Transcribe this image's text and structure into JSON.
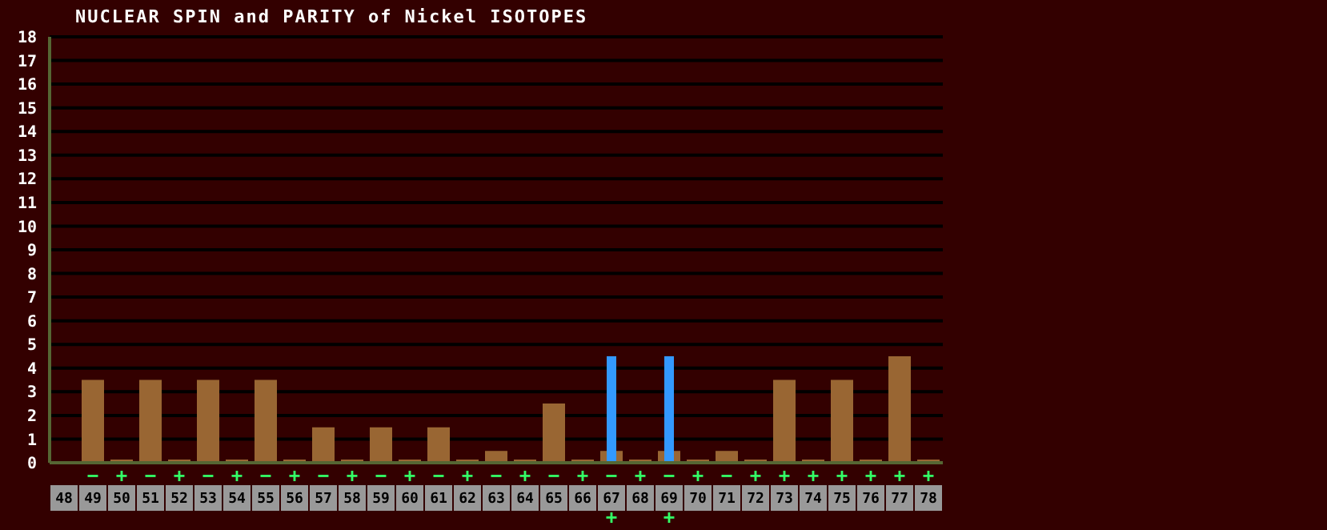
{
  "chart_data": {
    "type": "bar",
    "title": "NUCLEAR SPIN and PARITY of Nickel ISOTOPES",
    "categories": [
      "48",
      "49",
      "50",
      "51",
      "52",
      "53",
      "54",
      "55",
      "56",
      "57",
      "58",
      "59",
      "60",
      "61",
      "62",
      "63",
      "64",
      "65",
      "66",
      "67",
      "68",
      "69",
      "70",
      "71",
      "72",
      "73",
      "74",
      "75",
      "76",
      "77",
      "78"
    ],
    "series": [
      {
        "color": "#996633",
        "values": [
          null,
          3.5,
          0,
          3.5,
          0,
          3.5,
          0,
          3.5,
          0,
          1.5,
          0,
          1.5,
          0,
          1.5,
          0,
          0.5,
          0,
          2.5,
          0,
          0.5,
          0,
          0.5,
          0,
          0.5,
          0,
          3.5,
          0,
          3.5,
          0,
          4.5,
          0
        ],
        "value_labels": [
          null,
          "−",
          "+",
          "−",
          "+",
          "−",
          "+",
          "−",
          "+",
          "−",
          "+",
          "−",
          "+",
          "−",
          "+",
          "−",
          "+",
          "−",
          "+",
          "−",
          "+",
          "−",
          "+",
          "−",
          "+",
          "+",
          "+",
          "+",
          "+",
          "+",
          "+"
        ]
      },
      {
        "color": "#3399ff",
        "values": [
          null,
          null,
          null,
          null,
          null,
          null,
          null,
          null,
          null,
          null,
          null,
          null,
          null,
          null,
          null,
          null,
          null,
          null,
          null,
          4.5,
          null,
          4.5,
          null,
          null,
          null,
          null,
          null,
          null,
          null,
          null,
          null
        ],
        "value_labels": [
          null,
          null,
          null,
          null,
          null,
          null,
          null,
          null,
          null,
          null,
          null,
          null,
          null,
          null,
          null,
          null,
          null,
          null,
          null,
          "+",
          null,
          "+",
          null,
          null,
          null,
          null,
          null,
          null,
          null,
          null,
          null
        ]
      }
    ],
    "ylim": [
      0,
      18
    ],
    "yticks": [
      0,
      1,
      2,
      3,
      4,
      5,
      6,
      7,
      8,
      9,
      10,
      11,
      12,
      13,
      14,
      15,
      16,
      17,
      18
    ],
    "grid": "y",
    "legend": false
  }
}
